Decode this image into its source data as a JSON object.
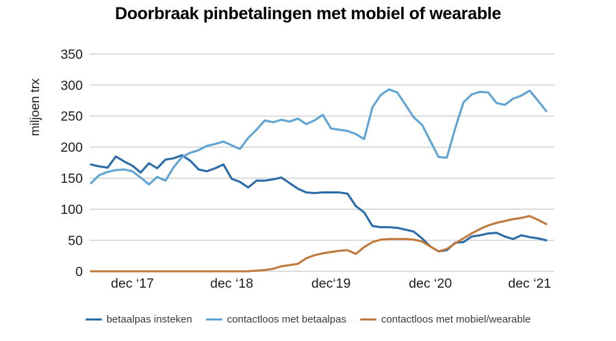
{
  "page": {
    "title": "Doorbraak pinbetalingen met mobiel of wearable"
  },
  "y_axis": {
    "label": "miljoen trx",
    "ticks": [
      0,
      50,
      100,
      150,
      200,
      250,
      300,
      350
    ],
    "min": 0,
    "max": 350
  },
  "x_axis": {
    "tick_labels": [
      "dec ‘17",
      "dec ‘18",
      "dec‘19",
      "dec ‘20",
      "dec ‘21"
    ],
    "tick_month_indices": [
      5,
      17,
      29,
      41,
      53
    ]
  },
  "legend": [
    {
      "label": "betaalpas insteken",
      "color": "#2B6CA9"
    },
    {
      "label": "contactloos met betaalpas",
      "color": "#5FA4D4"
    },
    {
      "label": "contactloos met mobiel/wearable",
      "color": "#C1793C"
    }
  ],
  "colors": {
    "gridline": "#c8c8c8",
    "axis_text": "#1c1c1c",
    "title_text": "#000000",
    "legend_text": "#3a3a3a",
    "background": "#ffffff"
  },
  "chart_data": {
    "type": "line",
    "title": "Doorbraak pinbetalingen met mobiel of wearable",
    "ylabel": "miljoen trx",
    "xlabel": "",
    "ylim": [
      0,
      350
    ],
    "grid": true,
    "legend_position": "bottom",
    "x": [
      "2017-07",
      "2017-08",
      "2017-09",
      "2017-10",
      "2017-11",
      "2017-12",
      "2018-01",
      "2018-02",
      "2018-03",
      "2018-04",
      "2018-05",
      "2018-06",
      "2018-07",
      "2018-08",
      "2018-09",
      "2018-10",
      "2018-11",
      "2018-12",
      "2019-01",
      "2019-02",
      "2019-03",
      "2019-04",
      "2019-05",
      "2019-06",
      "2019-07",
      "2019-08",
      "2019-09",
      "2019-10",
      "2019-11",
      "2019-12",
      "2020-01",
      "2020-02",
      "2020-03",
      "2020-04",
      "2020-05",
      "2020-06",
      "2020-07",
      "2020-08",
      "2020-09",
      "2020-10",
      "2020-11",
      "2020-12",
      "2021-01",
      "2021-02",
      "2021-03",
      "2021-04",
      "2021-05",
      "2021-06",
      "2021-07",
      "2021-08",
      "2021-09",
      "2021-10",
      "2021-11",
      "2021-12",
      "2022-01",
      "2022-02"
    ],
    "series": [
      {
        "name": "betaalpas insteken",
        "color": "#2B6CA9",
        "values": [
          172,
          169,
          167,
          185,
          177,
          170,
          159,
          174,
          166,
          180,
          182,
          187,
          178,
          164,
          161,
          166,
          172,
          149,
          144,
          135,
          146,
          146,
          148,
          151,
          142,
          133,
          127,
          126,
          127,
          127,
          127,
          125,
          105,
          95,
          73,
          71,
          71,
          70,
          67,
          64,
          53,
          40,
          32,
          34,
          46,
          47,
          56,
          58,
          61,
          62,
          56,
          52,
          58,
          55,
          53,
          50
        ]
      },
      {
        "name": "contactloos met betaalpas",
        "color": "#5FA4D4",
        "values": [
          142,
          155,
          160,
          163,
          164,
          161,
          151,
          140,
          152,
          146,
          168,
          184,
          191,
          195,
          202,
          205,
          209,
          203,
          197,
          215,
          228,
          243,
          240,
          244,
          241,
          246,
          237,
          243,
          252,
          230,
          228,
          226,
          221,
          213,
          264,
          284,
          293,
          288,
          268,
          248,
          236,
          210,
          184,
          183,
          230,
          272,
          285,
          289,
          288,
          271,
          268,
          278,
          283,
          291,
          275,
          258
        ]
      },
      {
        "name": "contactloos met mobiel/wearable",
        "color": "#C1793C",
        "values": [
          0,
          0,
          0,
          0,
          0,
          0,
          0,
          0,
          0,
          0,
          0,
          0,
          0,
          0,
          0,
          0,
          0,
          0,
          0,
          0,
          1,
          2,
          4,
          8,
          10,
          12,
          21,
          26,
          29,
          31,
          33,
          34,
          28,
          39,
          47,
          51,
          52,
          52,
          52,
          51,
          48,
          40,
          32,
          36,
          45,
          53,
          61,
          68,
          74,
          78,
          81,
          84,
          86,
          89,
          83,
          76
        ]
      }
    ]
  }
}
